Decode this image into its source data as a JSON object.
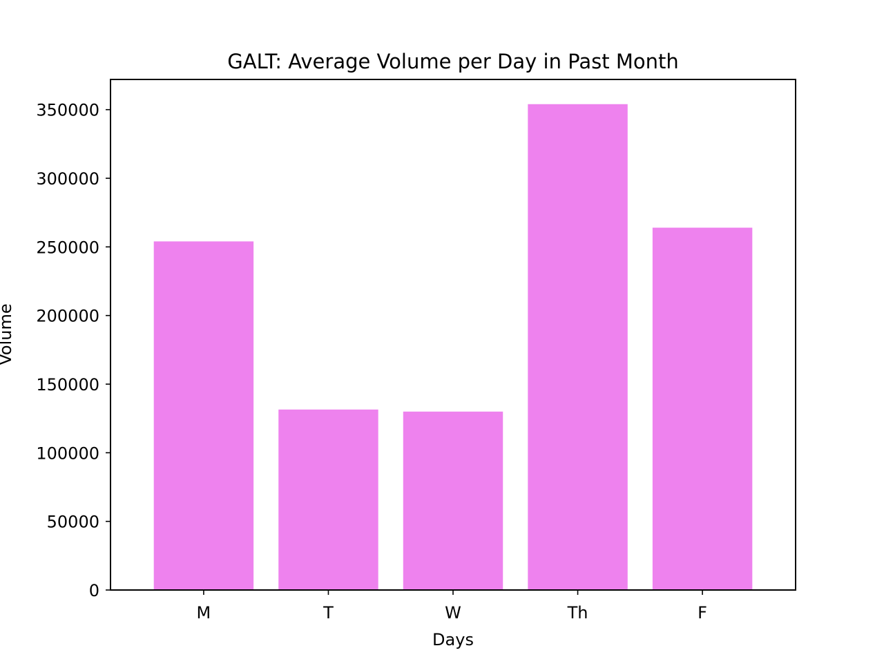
{
  "chart_data": {
    "type": "bar",
    "title": "GALT: Average Volume per Day in Past Month",
    "xlabel": "Days",
    "ylabel": "Volume",
    "categories": [
      "M",
      "T",
      "W",
      "Th",
      "F"
    ],
    "values": [
      254000,
      131500,
      130000,
      354000,
      264000
    ],
    "ylim": [
      0,
      372000
    ],
    "yticks": [
      0,
      50000,
      100000,
      150000,
      200000,
      250000,
      300000,
      350000
    ],
    "ytick_labels": [
      "0",
      "50000",
      "100000",
      "150000",
      "200000",
      "250000",
      "300000",
      "350000"
    ],
    "bar_color": "#ee82ee",
    "grid": false,
    "legend": "none"
  }
}
